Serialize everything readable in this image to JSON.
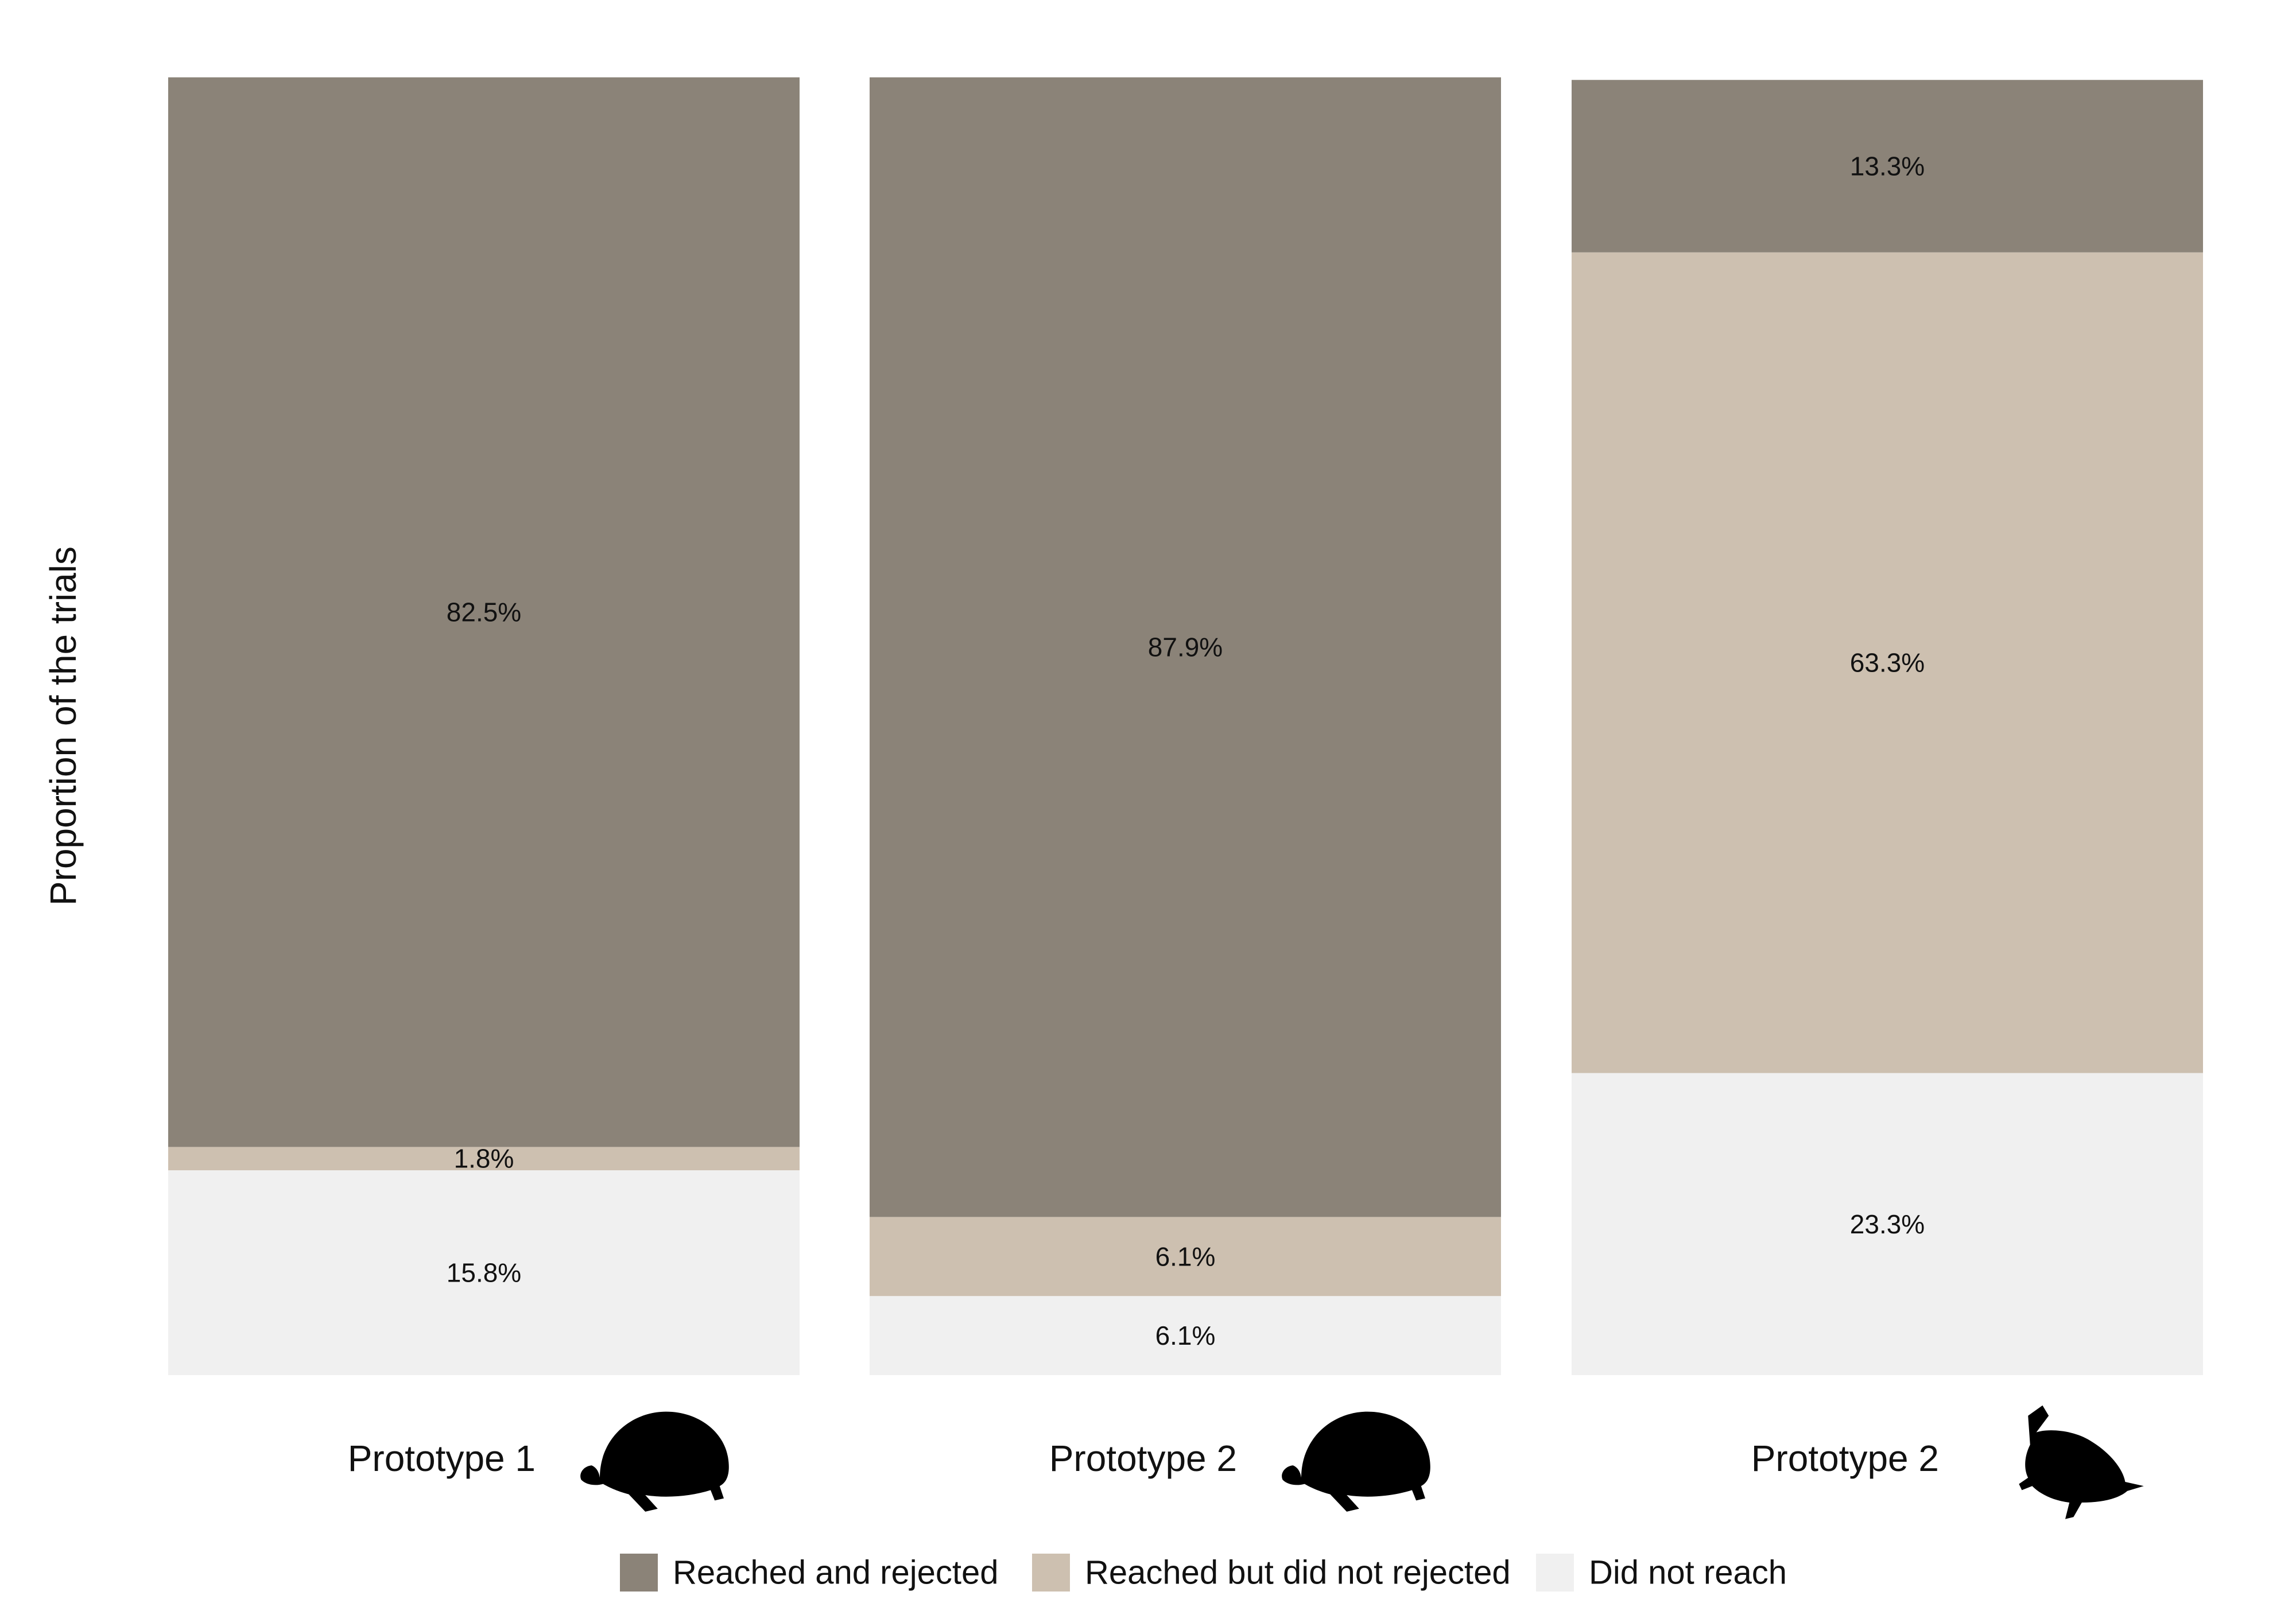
{
  "chart_data": {
    "type": "bar",
    "stacked": true,
    "normalized": true,
    "ylabel": "Proportion of the trials",
    "xlabel": "",
    "ylim": [
      0,
      1
    ],
    "grid": false,
    "legend_position": "bottom",
    "categories": [
      "Prototype 1",
      "Prototype 2",
      "Prototype 2"
    ],
    "category_icons": [
      "tortoise-silhouette-icon",
      "tortoise-silhouette-icon",
      "turtle-silhouette-icon"
    ],
    "series": [
      {
        "name": "Reached and rejected",
        "color": "#8b8378",
        "values": [
          82.5,
          87.9,
          13.3
        ],
        "labels": [
          "82.5%",
          "87.9%",
          "13.3%"
        ]
      },
      {
        "name": "Reached but did not rejected",
        "color": "#cdc0b0",
        "values": [
          1.8,
          6.1,
          63.3
        ],
        "labels": [
          "1.8%",
          "6.1%",
          "63.3%"
        ]
      },
      {
        "name": "Did not reach",
        "color": "#f0f0f0",
        "values": [
          15.8,
          6.1,
          23.3
        ],
        "labels": [
          "15.8%",
          "6.1%",
          "23.3%"
        ]
      }
    ]
  }
}
